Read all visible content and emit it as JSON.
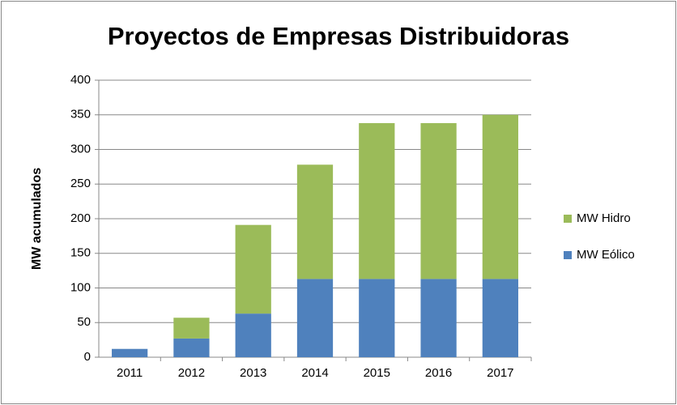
{
  "chart_data": {
    "type": "stacked_bar",
    "title": "Proyectos de Empresas Distribuidoras",
    "y_label": "MW acumulados",
    "categories": [
      "2011",
      "2012",
      "2013",
      "2014",
      "2015",
      "2016",
      "2017"
    ],
    "series": [
      {
        "name": "MW Eólico",
        "color": "#4f81bd",
        "values": [
          12,
          27,
          63,
          113,
          113,
          113,
          113
        ]
      },
      {
        "name": "MW Hidro",
        "color": "#9bbb59",
        "values": [
          0,
          30,
          128,
          165,
          225,
          225,
          237
        ]
      }
    ],
    "ylim": [
      0,
      400
    ],
    "yticks": [
      0,
      50,
      100,
      150,
      200,
      250,
      300,
      350,
      400
    ],
    "grid": true,
    "legend": "right"
  }
}
